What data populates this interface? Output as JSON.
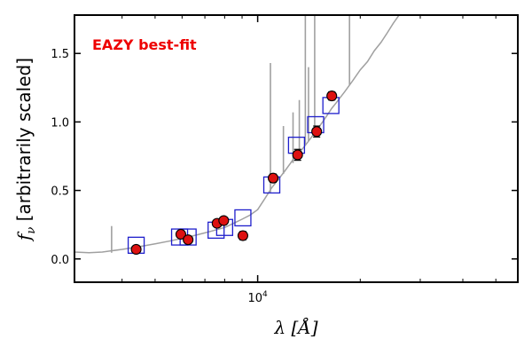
{
  "chart_data": {
    "type": "scatter",
    "title": "",
    "annotation": "EAZY best-fit",
    "annotation_color": "#ee0000",
    "xlabel": "λ [Å]",
    "ylabel_main": "f",
    "ylabel_sub": "ν",
    "ylabel_rest": " [arbitrarily scaled]",
    "x_scale": "log",
    "xlim": [
      2900,
      58000
    ],
    "ylim": [
      -0.17,
      1.78
    ],
    "y_ticks": [
      0.0,
      0.5,
      1.0,
      1.5
    ],
    "y_tick_labels": [
      "0.0",
      "0.5",
      "1.0",
      "1.5"
    ],
    "x_major_ticks": [
      10000
    ],
    "x_tick_label_base": "10",
    "x_tick_label_exp": "4",
    "x_minor_ticks": [
      4000,
      5000,
      6000,
      7000,
      8000,
      9000,
      20000,
      30000,
      40000,
      50000
    ],
    "grid": false,
    "colors": {
      "observed": "#dd1111",
      "model_photometry": "#1f1fcc",
      "spectrum": "#a0a0a0"
    },
    "series": [
      {
        "marker": "circle",
        "points": [
          {
            "x": 4400,
            "y": 0.07,
            "err": 0.02
          },
          {
            "x": 5950,
            "y": 0.18,
            "err": 0.02
          },
          {
            "x": 6250,
            "y": 0.14,
            "err": 0.02
          },
          {
            "x": 7600,
            "y": 0.26,
            "err": 0.02
          },
          {
            "x": 7950,
            "y": 0.28,
            "err": 0.02
          },
          {
            "x": 9050,
            "y": 0.17,
            "err": 0.03
          },
          {
            "x": 11100,
            "y": 0.59,
            "err": 0.03
          },
          {
            "x": 13100,
            "y": 0.76,
            "err": 0.04
          },
          {
            "x": 14900,
            "y": 0.93,
            "err": 0.04
          },
          {
            "x": 16500,
            "y": 1.19,
            "err": 0.03
          }
        ]
      },
      {
        "marker": "square",
        "points": [
          {
            "x": 4400,
            "y": 0.1
          },
          {
            "x": 5900,
            "y": 0.16
          },
          {
            "x": 6250,
            "y": 0.16
          },
          {
            "x": 7550,
            "y": 0.21
          },
          {
            "x": 8000,
            "y": 0.23
          },
          {
            "x": 9050,
            "y": 0.3
          },
          {
            "x": 11000,
            "y": 0.54
          },
          {
            "x": 13000,
            "y": 0.83
          },
          {
            "x": 14800,
            "y": 0.98
          },
          {
            "x": 16400,
            "y": 1.12
          }
        ]
      },
      {
        "type": "line",
        "points": [
          {
            "x": 2900,
            "y": 0.05
          },
          {
            "x": 3200,
            "y": 0.045
          },
          {
            "x": 3500,
            "y": 0.05
          },
          {
            "x": 4000,
            "y": 0.07
          },
          {
            "x": 4500,
            "y": 0.09
          },
          {
            "x": 5000,
            "y": 0.11
          },
          {
            "x": 5500,
            "y": 0.13
          },
          {
            "x": 6000,
            "y": 0.15
          },
          {
            "x": 6500,
            "y": 0.17
          },
          {
            "x": 7000,
            "y": 0.19
          },
          {
            "x": 7500,
            "y": 0.21
          },
          {
            "x": 8000,
            "y": 0.23
          },
          {
            "x": 8500,
            "y": 0.26
          },
          {
            "x": 9000,
            "y": 0.29
          },
          {
            "x": 9500,
            "y": 0.32
          },
          {
            "x": 10000,
            "y": 0.36
          },
          {
            "x": 10500,
            "y": 0.44
          },
          {
            "x": 11000,
            "y": 0.52
          },
          {
            "x": 11500,
            "y": 0.58
          },
          {
            "x": 12000,
            "y": 0.64
          },
          {
            "x": 12500,
            "y": 0.7
          },
          {
            "x": 13000,
            "y": 0.76
          },
          {
            "x": 13500,
            "y": 0.8
          },
          {
            "x": 14000,
            "y": 0.85
          },
          {
            "x": 14500,
            "y": 0.9
          },
          {
            "x": 15000,
            "y": 0.95
          },
          {
            "x": 15500,
            "y": 1.0
          },
          {
            "x": 16000,
            "y": 1.05
          },
          {
            "x": 16500,
            "y": 1.1
          },
          {
            "x": 17000,
            "y": 1.14
          },
          {
            "x": 18000,
            "y": 1.22
          },
          {
            "x": 19000,
            "y": 1.3
          },
          {
            "x": 20000,
            "y": 1.38
          },
          {
            "x": 21000,
            "y": 1.44
          },
          {
            "x": 22000,
            "y": 1.52
          },
          {
            "x": 23000,
            "y": 1.58
          },
          {
            "x": 24000,
            "y": 1.65
          },
          {
            "x": 25000,
            "y": 1.72
          },
          {
            "x": 26000,
            "y": 1.78
          }
        ],
        "emission_lines": [
          {
            "x": 3727,
            "base": 0.045,
            "peak": 0.24
          },
          {
            "x": 10900,
            "base": 0.48,
            "peak": 1.43
          },
          {
            "x": 11900,
            "base": 0.62,
            "peak": 0.97
          },
          {
            "x": 12700,
            "base": 0.7,
            "peak": 1.07
          },
          {
            "x": 13250,
            "base": 0.77,
            "peak": 1.16
          },
          {
            "x": 13800,
            "base": 0.83,
            "peak": 1.78
          },
          {
            "x": 14100,
            "base": 0.86,
            "peak": 1.4
          },
          {
            "x": 14700,
            "base": 0.92,
            "peak": 1.78
          },
          {
            "x": 18600,
            "base": 1.27,
            "peak": 1.78
          }
        ]
      }
    ]
  }
}
